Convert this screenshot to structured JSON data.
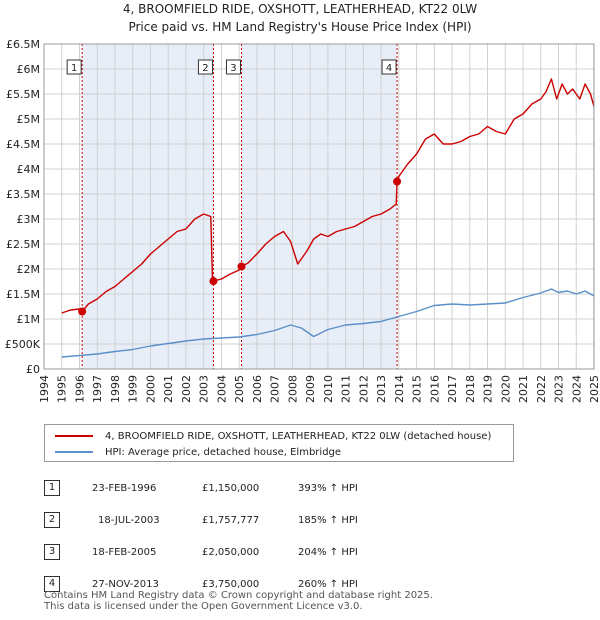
{
  "header": {
    "title_line1": "4, BROOMFIELD RIDE, OXSHOTT, LEATHERHEAD, KT22 0LW",
    "title_line2": "Price paid vs. HM Land Registry's House Price Index (HPI)"
  },
  "colors": {
    "property": "#cc0000",
    "hpi": "#5b8fc9",
    "shade": "#e8eef8",
    "marker_line": "#cc0000"
  },
  "chart_data": {
    "type": "line",
    "title": "4, BROOMFIELD RIDE, OXSHOTT, LEATHERHEAD, KT22 0LW",
    "subtitle": "Price paid vs. HM Land Registry's House Price Index (HPI)",
    "xlim": [
      1994,
      2025
    ],
    "ylim": [
      0,
      6500000
    ],
    "y_ticks": [
      0,
      500000,
      1000000,
      1500000,
      2000000,
      2500000,
      3000000,
      3500000,
      4000000,
      4500000,
      5000000,
      5500000,
      6000000,
      6500000
    ],
    "y_tick_labels": [
      "£0",
      "£500K",
      "£1M",
      "£1.5M",
      "£2M",
      "£2.5M",
      "£3M",
      "£3.5M",
      "£4M",
      "£4.5M",
      "£5M",
      "£5.5M",
      "£6M",
      "£6.5M"
    ],
    "x_ticks": [
      1994,
      1995,
      1996,
      1997,
      1998,
      1999,
      2000,
      2001,
      2002,
      2003,
      2004,
      2005,
      2006,
      2007,
      2008,
      2009,
      2010,
      2011,
      2012,
      2013,
      2014,
      2015,
      2016,
      2017,
      2018,
      2019,
      2020,
      2021,
      2022,
      2023,
      2024,
      2025
    ],
    "x_tick_labels": [
      "1994",
      "1995",
      "1996",
      "1997",
      "1998",
      "1999",
      "2000",
      "2001",
      "2002",
      "2003",
      "2004",
      "2005",
      "2006",
      "2007",
      "2008",
      "2009",
      "2010",
      "2011",
      "2012",
      "2013",
      "2014",
      "2015",
      "2016",
      "2017",
      "2018",
      "2019",
      "2020",
      "2021",
      "2022",
      "2023",
      "2024",
      "2025"
    ],
    "grid": true,
    "series": [
      {
        "name": "4, BROOMFIELD RIDE, OXSHOTT, LEATHERHEAD, KT22 0LW (detached house)",
        "color": "#cc0000",
        "x": [
          1995.0,
          1995.5,
          1996.0,
          1996.15,
          1996.5,
          1997.0,
          1997.5,
          1998.0,
          1998.5,
          1999.0,
          1999.5,
          2000.0,
          2000.5,
          2001.0,
          2001.5,
          2002.0,
          2002.5,
          2003.0,
          2003.4,
          2003.5,
          2003.55,
          2004.0,
          2004.5,
          2005.0,
          2005.13,
          2005.5,
          2006.0,
          2006.5,
          2007.0,
          2007.5,
          2007.9,
          2008.3,
          2008.8,
          2009.2,
          2009.6,
          2010.0,
          2010.5,
          2011.0,
          2011.5,
          2012.0,
          2012.5,
          2013.0,
          2013.5,
          2013.85,
          2013.9,
          2014.0,
          2014.5,
          2015.0,
          2015.5,
          2016.0,
          2016.5,
          2017.0,
          2017.5,
          2018.0,
          2018.5,
          2019.0,
          2019.5,
          2020.0,
          2020.5,
          2021.0,
          2021.5,
          2022.0,
          2022.3,
          2022.6,
          2022.9,
          2023.2,
          2023.5,
          2023.8,
          2024.2,
          2024.5,
          2024.8,
          2025.0
        ],
        "y": [
          1120000,
          1180000,
          1200000,
          1150000,
          1300000,
          1400000,
          1550000,
          1650000,
          1800000,
          1950000,
          2100000,
          2300000,
          2450000,
          2600000,
          2750000,
          2800000,
          3000000,
          3100000,
          3050000,
          1757777,
          1757777,
          1800000,
          1900000,
          1980000,
          2050000,
          2120000,
          2300000,
          2500000,
          2650000,
          2750000,
          2550000,
          2100000,
          2350000,
          2600000,
          2700000,
          2650000,
          2750000,
          2800000,
          2850000,
          2950000,
          3050000,
          3100000,
          3200000,
          3300000,
          3750000,
          3850000,
          4100000,
          4300000,
          4600000,
          4700000,
          4500000,
          4500000,
          4550000,
          4650000,
          4700000,
          4850000,
          4750000,
          4700000,
          5000000,
          5100000,
          5300000,
          5400000,
          5550000,
          5800000,
          5400000,
          5700000,
          5500000,
          5600000,
          5400000,
          5700000,
          5500000,
          5250000
        ]
      },
      {
        "name": "HPI: Average price, detached house, Elmbridge",
        "color": "#5b8fc9",
        "x": [
          1995.0,
          1996.0,
          1997.0,
          1998.0,
          1999.0,
          2000.0,
          2001.0,
          2002.0,
          2003.0,
          2004.0,
          2005.0,
          2006.0,
          2007.0,
          2007.9,
          2008.5,
          2009.2,
          2010.0,
          2011.0,
          2012.0,
          2013.0,
          2014.0,
          2015.0,
          2016.0,
          2017.0,
          2018.0,
          2019.0,
          2020.0,
          2021.0,
          2022.0,
          2022.6,
          2023.0,
          2023.5,
          2024.0,
          2024.5,
          2025.0
        ],
        "y": [
          240000,
          270000,
          300000,
          350000,
          390000,
          460000,
          510000,
          560000,
          600000,
          620000,
          640000,
          690000,
          770000,
          880000,
          820000,
          650000,
          790000,
          880000,
          910000,
          950000,
          1050000,
          1150000,
          1270000,
          1300000,
          1280000,
          1300000,
          1320000,
          1430000,
          1520000,
          1600000,
          1530000,
          1560000,
          1500000,
          1560000,
          1460000
        ]
      }
    ],
    "sales": [
      {
        "label": "1",
        "x": 1996.15,
        "y": 1150000
      },
      {
        "label": "2",
        "x": 2003.55,
        "y": 1757777
      },
      {
        "label": "3",
        "x": 2005.13,
        "y": 2050000
      },
      {
        "label": "4",
        "x": 2013.9,
        "y": 3750000
      }
    ]
  },
  "legend": {
    "property_label": "4, BROOMFIELD RIDE, OXSHOTT, LEATHERHEAD, KT22 0LW (detached house)",
    "hpi_label": "HPI: Average price, detached house, Elmbridge"
  },
  "transactions": [
    {
      "num": "1",
      "date": "23-FEB-1996",
      "price": "£1,150,000",
      "hpi": "393% ↑ HPI"
    },
    {
      "num": "2",
      "date": "18-JUL-2003",
      "price": "£1,757,777",
      "hpi": "185% ↑ HPI"
    },
    {
      "num": "3",
      "date": "18-FEB-2005",
      "price": "£2,050,000",
      "hpi": "204% ↑ HPI"
    },
    {
      "num": "4",
      "date": "27-NOV-2013",
      "price": "£3,750,000",
      "hpi": "260% ↑ HPI"
    }
  ],
  "footer": {
    "line1": "Contains HM Land Registry data © Crown copyright and database right 2025.",
    "line2": "This data is licensed under the Open Government Licence v3.0."
  }
}
